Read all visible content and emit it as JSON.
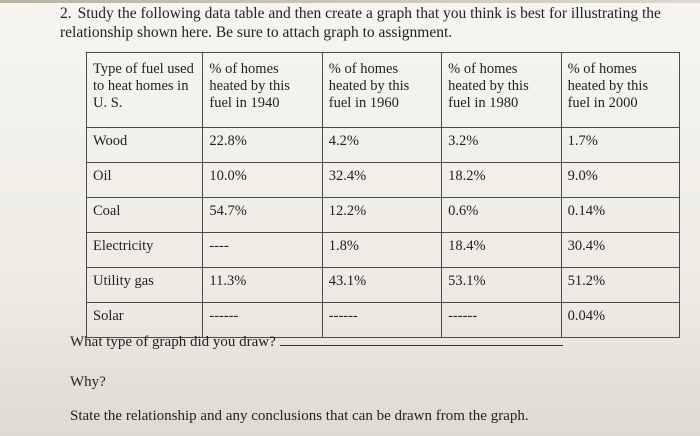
{
  "question": {
    "number": "2.",
    "text": "Study the following data table and then create a graph that you think is best for illustrating the relationship shown here. Be sure to attach graph to assignment."
  },
  "table": {
    "headers": [
      "Type of fuel used to heat homes in U. S.",
      "% of homes heated by this fuel in 1940",
      "% of homes heated by this fuel in 1960",
      "% of homes heated by this fuel in 1980",
      "% of homes heated by this fuel in 2000"
    ],
    "rows": [
      [
        "Wood",
        "22.8%",
        "4.2%",
        "3.2%",
        "1.7%"
      ],
      [
        "Oil",
        "10.0%",
        "32.4%",
        "18.2%",
        "9.0%"
      ],
      [
        "Coal",
        "54.7%",
        "12.2%",
        "0.6%",
        "0.14%"
      ],
      [
        "Electricity",
        "----",
        "1.8%",
        "18.4%",
        "30.4%"
      ],
      [
        "Utility gas",
        "11.3%",
        "43.1%",
        "53.1%",
        "51.2%"
      ],
      [
        "Solar",
        "------",
        "------",
        "------",
        "0.04%"
      ]
    ]
  },
  "prompts": {
    "graph_type": "What type of graph did you draw?",
    "why": "Why?",
    "relationship": "State the relationship and any conclusions that can be drawn from the graph."
  }
}
